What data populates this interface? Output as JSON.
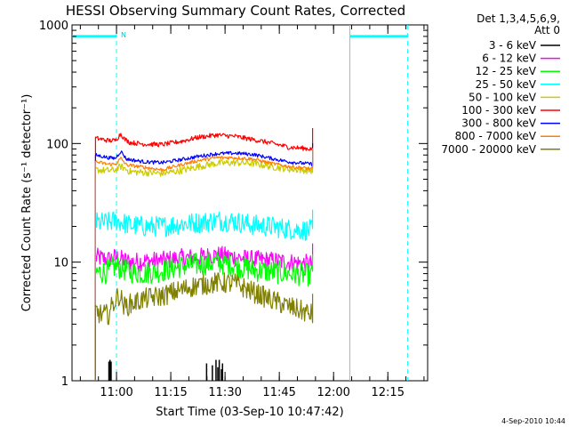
{
  "chart_data": {
    "type": "line",
    "title": "HESSI Observing Summary Count Rates, Corrected",
    "xlabel": "Start Time (03-Sep-10 10:47:42)",
    "ylabel": "Corrected Count Rate (s⁻¹ detector⁻¹)",
    "y_scale": "log",
    "ylim": [
      1,
      1000
    ],
    "xlim_minutes_after_start": [
      0,
      98.3
    ],
    "x_tick_labels": [
      "11:00",
      "11:15",
      "11:30",
      "11:45",
      "12:00",
      "12:15"
    ],
    "x_tick_minutes_after_start": [
      12.3,
      27.3,
      42.3,
      57.3,
      72.3,
      87.3
    ],
    "y_tick_labels": [
      "1",
      "10",
      "100",
      "1000"
    ],
    "y_tick_values": [
      1,
      10,
      100,
      1000
    ],
    "legend_header": [
      "Det 1,3,4,5,6,9,",
      "Att 0"
    ],
    "legend_position": "right",
    "series": [
      {
        "name": "3 - 6 keV",
        "color": "#000000",
        "spikes": [
          [
            10.2,
            1.45
          ],
          [
            10.5,
            1.5
          ],
          [
            10.8,
            1.45
          ],
          [
            37.2,
            1.4
          ],
          [
            38.8,
            1.35
          ],
          [
            39.8,
            1.5
          ],
          [
            40.3,
            1.3
          ],
          [
            40.7,
            1.5
          ],
          [
            41.3,
            1.25
          ],
          [
            41.6,
            1.4
          ]
        ]
      },
      {
        "name": "6 - 12 keV",
        "color": "#ff00ff",
        "x": [
          6.5,
          10,
          12,
          16,
          20,
          25,
          30,
          35,
          40,
          45,
          50,
          55,
          60,
          66.5
        ],
        "y": [
          11,
          10.5,
          11,
          10,
          10.2,
          10.3,
          10.8,
          11,
          11.5,
          11,
          10.5,
          10.3,
          10,
          9.6
        ],
        "noise": 0.08
      },
      {
        "name": "12 - 25 keV",
        "color": "#00ff00",
        "x": [
          6.5,
          10,
          12,
          16,
          20,
          25,
          30,
          35,
          40,
          45,
          50,
          55,
          60,
          66.5
        ],
        "y": [
          8.2,
          8.3,
          9.3,
          8.3,
          8.1,
          8.5,
          9.2,
          9.6,
          10,
          9.4,
          8.6,
          8.3,
          8,
          7.8
        ],
        "noise": 0.1
      },
      {
        "name": "25 - 50 keV",
        "color": "#00ffff",
        "x": [
          6.5,
          10,
          12,
          16,
          20,
          25,
          30,
          35,
          40,
          45,
          50,
          55,
          60,
          66.5
        ],
        "y": [
          21.5,
          21.5,
          22.5,
          20.5,
          20,
          20,
          21,
          21.5,
          22.5,
          22,
          20.5,
          20,
          19,
          18.5
        ],
        "noise": 0.09
      },
      {
        "name": "50 - 100 keV",
        "color": "#cccc00",
        "x": [
          6.5,
          10,
          12,
          13.5,
          16,
          20,
          25,
          30,
          35,
          40,
          45,
          50,
          55,
          60,
          66.5
        ],
        "y": [
          60,
          59,
          60,
          64,
          58,
          57,
          56,
          59,
          64,
          68,
          69,
          68,
          64,
          61,
          59
        ],
        "noise": 0.03
      },
      {
        "name": "100 - 300 keV",
        "color": "#ff0000",
        "x": [
          6.5,
          10,
          12,
          13.5,
          14.5,
          16,
          20,
          25,
          30,
          35,
          40,
          45,
          50,
          55,
          60,
          66.5
        ],
        "y": [
          111,
          106,
          106,
          121,
          109,
          102,
          99,
          98,
          104,
          113,
          118,
          115,
          108,
          101,
          93,
          90
        ],
        "noise": 0.02
      },
      {
        "name": "300 - 800 keV",
        "color": "#0000ff",
        "x": [
          6.5,
          10,
          12,
          13.5,
          15,
          20,
          25,
          30,
          35,
          40,
          45,
          50,
          55,
          60,
          66.5
        ],
        "y": [
          80,
          76,
          75,
          86,
          74,
          70,
          69,
          73,
          78,
          82,
          83,
          81,
          75,
          70,
          67
        ],
        "noise": 0.015
      },
      {
        "name": "800 - 7000 keV",
        "color": "#ff8000",
        "x": [
          6.5,
          10,
          12,
          13.5,
          15,
          20,
          25,
          30,
          35,
          40,
          45,
          50,
          55,
          60,
          66.5
        ],
        "y": [
          70,
          67,
          67,
          75,
          66,
          63,
          60,
          66,
          72,
          76,
          76,
          74,
          68,
          64,
          61
        ],
        "noise": 0.015
      },
      {
        "name": "7000 - 20000 keV",
        "color": "#808000",
        "x": [
          6.5,
          8,
          10,
          12,
          13,
          14.5,
          16,
          20,
          25,
          30,
          33,
          35,
          40,
          45,
          50,
          55,
          60,
          66.5
        ],
        "y": [
          3.9,
          3.6,
          3.6,
          4.8,
          5.3,
          4.2,
          4.4,
          4.9,
          5.2,
          5.8,
          6.2,
          6.4,
          6.7,
          6.6,
          5.6,
          4.8,
          4.2,
          3.6
        ],
        "noise": 0.09
      }
    ],
    "attenuator_segments": [
      {
        "label": "N",
        "start": 0,
        "end": 12.3,
        "level": 800
      },
      {
        "label": "",
        "start": 76.8,
        "end": 92.8,
        "level": 800
      }
    ],
    "vertical_markers": [
      {
        "x": 12.3,
        "style": "dashed",
        "color": "#00ffff"
      },
      {
        "x": 76.8,
        "style": "solid",
        "color": "#00ffff"
      },
      {
        "x": 92.8,
        "style": "dashed",
        "color": "#00ffff"
      }
    ],
    "grid": false
  },
  "footer": {
    "timestamp": "4-Sep-2010 10:44"
  }
}
